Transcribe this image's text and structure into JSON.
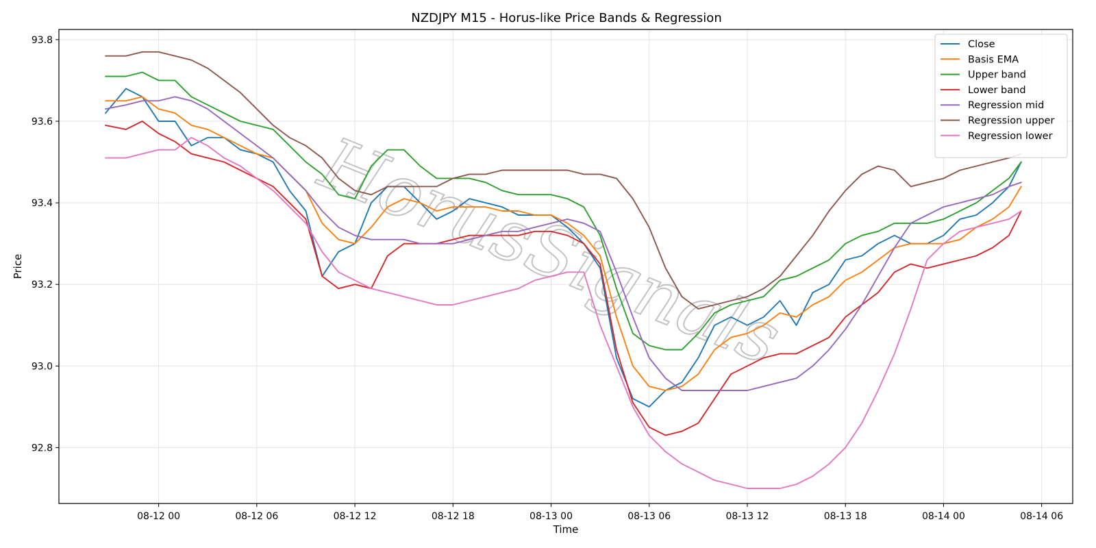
{
  "chart_data": {
    "type": "line",
    "title": "NZDJPY M15 - Horus-like Price Bands & Regression",
    "xlabel": "Time",
    "ylabel": "Price",
    "watermark": "HorusSignals",
    "grid": true,
    "legend_position": "top-right",
    "xlim": [
      -6.1,
      55.9
    ],
    "ylim": [
      92.663,
      93.825
    ],
    "xtick_values": [
      0,
      6,
      12,
      18,
      24,
      30,
      36,
      42,
      48,
      54
    ],
    "xtick_labels": [
      "08-12 00",
      "08-12 06",
      "08-12 12",
      "08-12 18",
      "08-13 00",
      "08-13 06",
      "08-13 12",
      "08-13 18",
      "08-14 00",
      "08-14 06"
    ],
    "yticks": [
      92.8,
      93.0,
      93.2,
      93.4,
      93.6,
      93.8
    ],
    "ytick_labels": [
      "92.8",
      "93.0",
      "93.2",
      "93.4",
      "93.6",
      "93.8"
    ],
    "x": [
      -3.25,
      -2,
      -1,
      0,
      1,
      2,
      3,
      4,
      5,
      6,
      7,
      8,
      9,
      10,
      11,
      12,
      13,
      14,
      15,
      16,
      17,
      18,
      19,
      20,
      21,
      22,
      23,
      24,
      25,
      26,
      27,
      28,
      29,
      30,
      31,
      32,
      33,
      34,
      35,
      36,
      37,
      38,
      39,
      40,
      41,
      42,
      43,
      44,
      45,
      46,
      47,
      48,
      49,
      50,
      51,
      52,
      52.75
    ],
    "series": [
      {
        "name": "Close",
        "color": "#1f77b4",
        "values": [
          93.62,
          93.68,
          93.66,
          93.6,
          93.6,
          93.54,
          93.56,
          93.56,
          93.53,
          93.52,
          93.5,
          93.43,
          93.38,
          93.22,
          93.28,
          93.3,
          93.4,
          93.44,
          93.44,
          93.4,
          93.36,
          93.38,
          93.41,
          93.4,
          93.39,
          93.37,
          93.37,
          93.37,
          93.34,
          93.3,
          93.24,
          93.02,
          92.92,
          92.9,
          92.94,
          92.96,
          93.02,
          93.1,
          93.12,
          93.1,
          93.12,
          93.16,
          93.1,
          93.18,
          93.2,
          93.26,
          93.27,
          93.3,
          93.32,
          93.3,
          93.3,
          93.32,
          93.36,
          93.37,
          93.4,
          93.44,
          93.5
        ]
      },
      {
        "name": "Basis EMA",
        "color": "#ff7f0e",
        "values": [
          93.65,
          93.65,
          93.66,
          93.63,
          93.62,
          93.59,
          93.58,
          93.56,
          93.54,
          93.52,
          93.51,
          93.47,
          93.43,
          93.35,
          93.31,
          93.3,
          93.34,
          93.39,
          93.41,
          93.4,
          93.38,
          93.39,
          93.39,
          93.39,
          93.38,
          93.38,
          93.37,
          93.37,
          93.35,
          93.32,
          93.27,
          93.12,
          93.0,
          92.95,
          92.94,
          92.95,
          92.98,
          93.04,
          93.07,
          93.08,
          93.1,
          93.13,
          93.12,
          93.15,
          93.17,
          93.21,
          93.23,
          93.26,
          93.29,
          93.3,
          93.3,
          93.3,
          93.31,
          93.34,
          93.36,
          93.39,
          93.44
        ]
      },
      {
        "name": "Upper band",
        "color": "#2ca02c",
        "values": [
          93.71,
          93.71,
          93.72,
          93.7,
          93.7,
          93.66,
          93.64,
          93.62,
          93.6,
          93.59,
          93.58,
          93.54,
          93.5,
          93.47,
          93.42,
          93.41,
          93.49,
          93.53,
          93.53,
          93.49,
          93.46,
          93.46,
          93.46,
          93.45,
          93.43,
          93.42,
          93.42,
          93.42,
          93.41,
          93.39,
          93.32,
          93.19,
          93.08,
          93.05,
          93.04,
          93.04,
          93.08,
          93.13,
          93.15,
          93.16,
          93.17,
          93.21,
          93.22,
          93.24,
          93.26,
          93.3,
          93.32,
          93.33,
          93.35,
          93.35,
          93.35,
          93.36,
          93.38,
          93.4,
          93.43,
          93.46,
          93.5
        ]
      },
      {
        "name": "Lower band",
        "color": "#d62728",
        "values": [
          93.59,
          93.58,
          93.6,
          93.57,
          93.55,
          93.52,
          93.51,
          93.5,
          93.48,
          93.46,
          93.44,
          93.4,
          93.36,
          93.22,
          93.19,
          93.2,
          93.19,
          93.27,
          93.3,
          93.3,
          93.3,
          93.31,
          93.32,
          93.32,
          93.32,
          93.32,
          93.33,
          93.33,
          93.32,
          93.3,
          93.25,
          93.04,
          92.91,
          92.85,
          92.83,
          92.84,
          92.86,
          92.92,
          92.98,
          93.0,
          93.02,
          93.03,
          93.03,
          93.05,
          93.07,
          93.12,
          93.15,
          93.18,
          93.23,
          93.25,
          93.24,
          93.25,
          93.26,
          93.27,
          93.29,
          93.32,
          93.38
        ]
      },
      {
        "name": "Regression mid",
        "color": "#9467bd",
        "values": [
          93.63,
          93.64,
          93.65,
          93.65,
          93.66,
          93.65,
          93.63,
          93.6,
          93.57,
          93.54,
          93.51,
          93.47,
          93.43,
          93.38,
          93.34,
          93.32,
          93.31,
          93.31,
          93.31,
          93.3,
          93.3,
          93.3,
          93.31,
          93.32,
          93.33,
          93.33,
          93.34,
          93.35,
          93.36,
          93.35,
          93.33,
          93.23,
          93.12,
          93.02,
          92.97,
          92.94,
          92.94,
          92.94,
          92.94,
          92.94,
          92.95,
          92.96,
          92.97,
          93.0,
          93.04,
          93.09,
          93.15,
          93.22,
          93.29,
          93.35,
          93.37,
          93.39,
          93.4,
          93.41,
          93.42,
          93.44,
          93.45
        ]
      },
      {
        "name": "Regression upper",
        "color": "#8c564b",
        "values": [
          93.76,
          93.76,
          93.77,
          93.77,
          93.76,
          93.75,
          93.73,
          93.7,
          93.67,
          93.63,
          93.59,
          93.56,
          93.54,
          93.51,
          93.46,
          93.43,
          93.42,
          93.44,
          93.44,
          93.44,
          93.44,
          93.46,
          93.47,
          93.47,
          93.48,
          93.48,
          93.48,
          93.48,
          93.48,
          93.47,
          93.47,
          93.46,
          93.41,
          93.34,
          93.24,
          93.17,
          93.14,
          93.15,
          93.16,
          93.17,
          93.19,
          93.22,
          93.27,
          93.32,
          93.38,
          93.43,
          93.47,
          93.49,
          93.48,
          93.44,
          93.45,
          93.46,
          93.48,
          93.49,
          93.5,
          93.51,
          93.52
        ]
      },
      {
        "name": "Regression lower",
        "color": "#e377c2",
        "values": [
          93.51,
          93.51,
          93.52,
          93.53,
          93.53,
          93.56,
          93.54,
          93.51,
          93.49,
          93.46,
          93.43,
          93.39,
          93.35,
          93.28,
          93.23,
          93.21,
          93.19,
          93.18,
          93.17,
          93.16,
          93.15,
          93.15,
          93.16,
          93.17,
          93.18,
          93.19,
          93.21,
          93.22,
          93.23,
          93.23,
          93.1,
          93.0,
          92.9,
          92.83,
          92.79,
          92.76,
          92.74,
          92.72,
          92.71,
          92.7,
          92.7,
          92.7,
          92.71,
          92.73,
          92.76,
          92.8,
          92.86,
          92.94,
          93.03,
          93.14,
          93.26,
          93.3,
          93.33,
          93.34,
          93.35,
          93.36,
          93.38
        ]
      }
    ]
  }
}
